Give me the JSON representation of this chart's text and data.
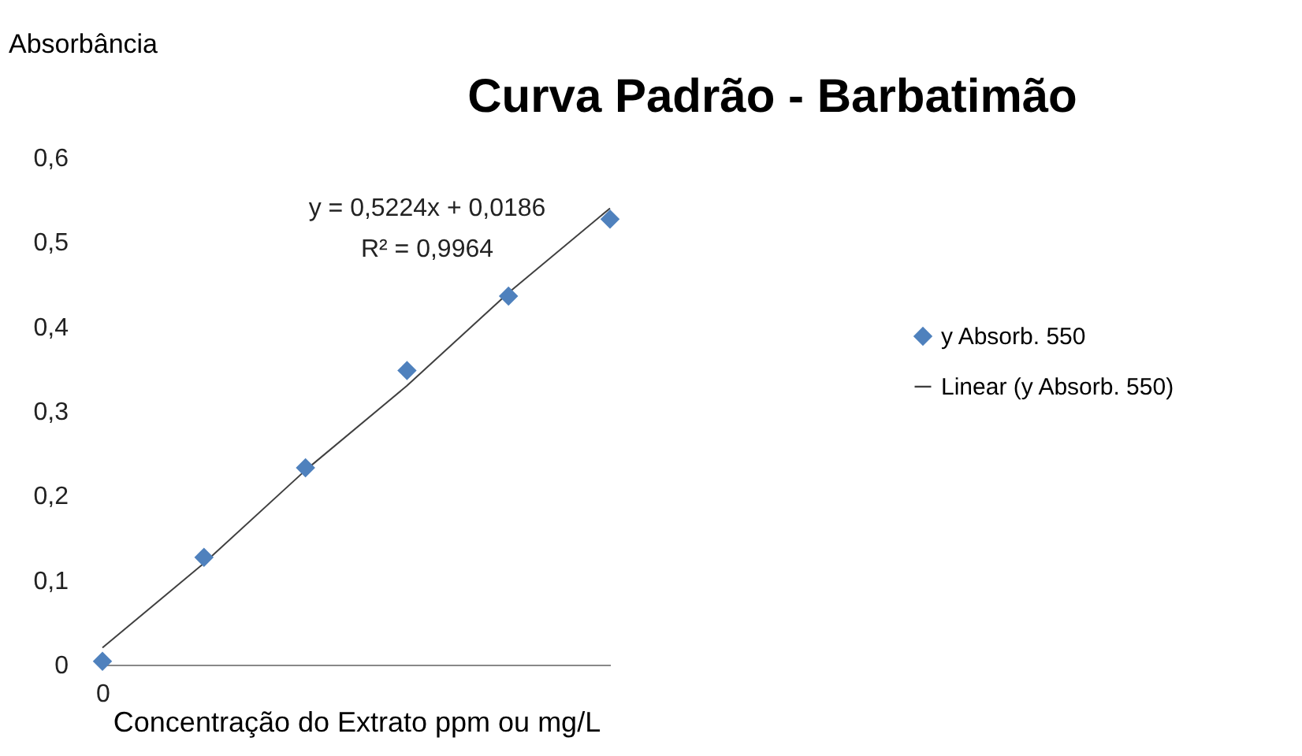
{
  "chart_data": {
    "type": "scatter",
    "title": "Curva Padrão - Barbatimão",
    "xlabel": "Concentração do Extrato ppm ou mg/L",
    "ylabel": "Absorbância",
    "annotations": [
      "y = 0,5224x + 0,0186",
      "R² = 0,9964"
    ],
    "categories": [
      "0",
      null,
      null,
      null,
      null,
      null
    ],
    "ylim": [
      0,
      0.6
    ],
    "yticks": [
      0,
      {
        "value": 0.1,
        "label": "0,1"
      },
      {
        "value": 0.2,
        "label": "0,2"
      },
      {
        "value": 0.3,
        "label": "0,3"
      },
      {
        "value": 0.4,
        "label": "0,4"
      },
      {
        "value": 0.5,
        "label": "0,5"
      },
      {
        "value": 0.6,
        "label": "0,6"
      }
    ],
    "grid": false,
    "legend": "right",
    "series": [
      {
        "name": "y Absorb. 550",
        "color": "#4f81bd",
        "marker": "diamond",
        "values": [
          0.004,
          0.127,
          0.233,
          0.348,
          0.436,
          0.527
        ]
      },
      {
        "name": "Linear (y Absorb. 550)",
        "type": "line",
        "color": "#404040",
        "values": [
          0.02,
          0.12,
          0.23,
          0.33,
          0.44,
          0.54
        ]
      }
    ]
  }
}
